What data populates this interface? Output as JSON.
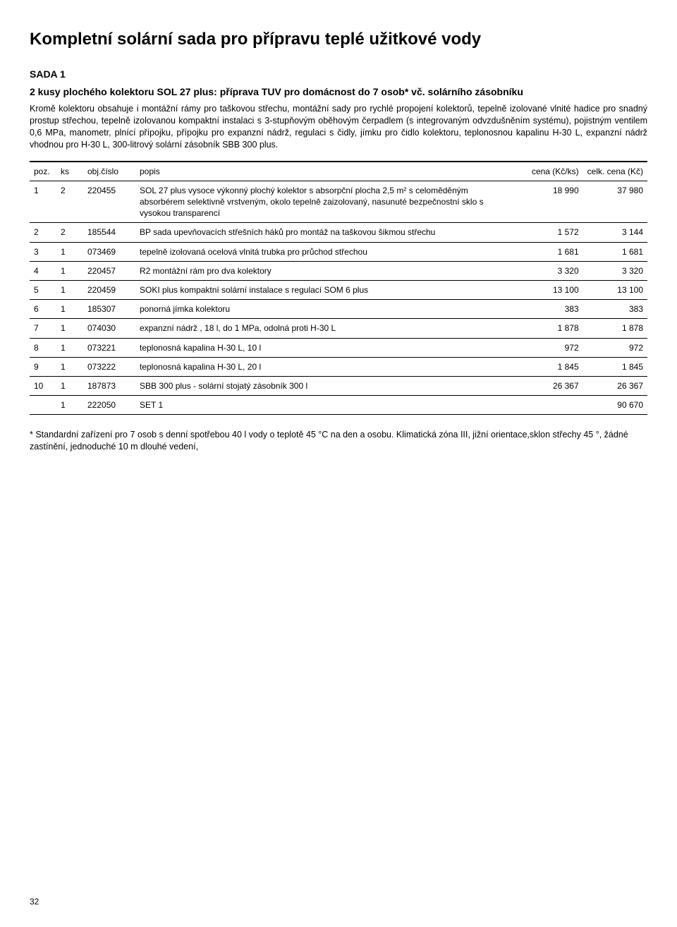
{
  "title": "Kompletní solární sada pro přípravu teplé užitkové vody",
  "subhead1": "SADA 1",
  "subhead2": "2 kusy plochého kolektoru SOL 27 plus: příprava TUV pro domácnost do 7 osob* vč. solárního zásobníku",
  "description": "Kromě kolektoru obsahuje i montážní rámy pro taškovou střechu, montážní sady pro rychlé propojení kolektorů, tepelně izolované vlnité hadice pro snadný prostup střechou, tepelně izolovanou kompaktní instalaci s 3-stupňovým oběhovým čerpadlem (s integrovaným odvzdušněním systému), pojistným ventilem 0,6 MPa, manometr, plnící přípojku, přípojku pro expanzní nádrž, regulaci s čidly, jímku pro čidlo kolektoru, teplonosnou kapalinu H-30 L, expanzní nádrž vhodnou pro H-30 L, 300-litrový solární zásobník SBB 300 plus.",
  "table": {
    "headers": {
      "poz": "poz.",
      "ks": "ks",
      "obj": "obj.číslo",
      "popis": "popis",
      "cena_ks": "cena (Kč/ks)",
      "cena_celk": "celk. cena (Kč)"
    },
    "rows": [
      {
        "poz": "1",
        "ks": "2",
        "obj": "220455",
        "popis": "SOL 27 plus vysoce výkonný plochý kolektor s absorpční plocha 2,5 m² s celoměděným absorbérem selektivně vrstveným, okolo tepelně zaizolovaný, nasunuté bezpečnostní sklo s vysokou transparencí",
        "c1": "18 990",
        "c2": "37 980"
      },
      {
        "poz": "2",
        "ks": "2",
        "obj": "185544",
        "popis": "BP sada upevňovacích střešních háků pro montáž na taškovou šikmou střechu",
        "c1": "1 572",
        "c2": "3 144"
      },
      {
        "poz": "3",
        "ks": "1",
        "obj": "073469",
        "popis": "tepelně izolovaná ocelová vlnitá trubka pro průchod střechou",
        "c1": "1 681",
        "c2": "1 681"
      },
      {
        "poz": "4",
        "ks": "1",
        "obj": "220457",
        "popis": "R2 montážní rám pro dva kolektory",
        "c1": "3 320",
        "c2": "3 320"
      },
      {
        "poz": "5",
        "ks": "1",
        "obj": "220459",
        "popis": "SOKI plus kompaktní solární instalace s regulací SOM 6 plus",
        "c1": "13 100",
        "c2": "13 100"
      },
      {
        "poz": "6",
        "ks": "1",
        "obj": "185307",
        "popis": "ponorná jímka kolektoru",
        "c1": "383",
        "c2": "383"
      },
      {
        "poz": "7",
        "ks": "1",
        "obj": "074030",
        "popis": "expanzní nádrž , 18 l, do 1 MPa, odolná proti H-30 L",
        "c1": "1 878",
        "c2": "1 878"
      },
      {
        "poz": "8",
        "ks": "1",
        "obj": "073221",
        "popis": "teplonosná kapalina H-30 L, 10 l",
        "c1": "972",
        "c2": "972"
      },
      {
        "poz": "9",
        "ks": "1",
        "obj": "073222",
        "popis": "teplonosná kapalina H-30 L, 20 l",
        "c1": "1 845",
        "c2": "1 845"
      },
      {
        "poz": "10",
        "ks": "1",
        "obj": "187873",
        "popis": "SBB 300 plus - solární stojatý zásobník 300 l",
        "c1": "26 367",
        "c2": "26 367"
      },
      {
        "poz": "",
        "ks": "1",
        "obj": "222050",
        "popis": "SET 1",
        "c1": "",
        "c2": "90 670"
      }
    ]
  },
  "footnote": "* Standardní zařízení pro 7 osob s denní spotřebou 40 l vody o teplotě 45 °C na den a osobu. Klimatická zóna III, jižní orientace,sklon střechy 45 °, žádné zastínění, jednoduché 10 m dlouhé vedení,",
  "page_number": "32"
}
